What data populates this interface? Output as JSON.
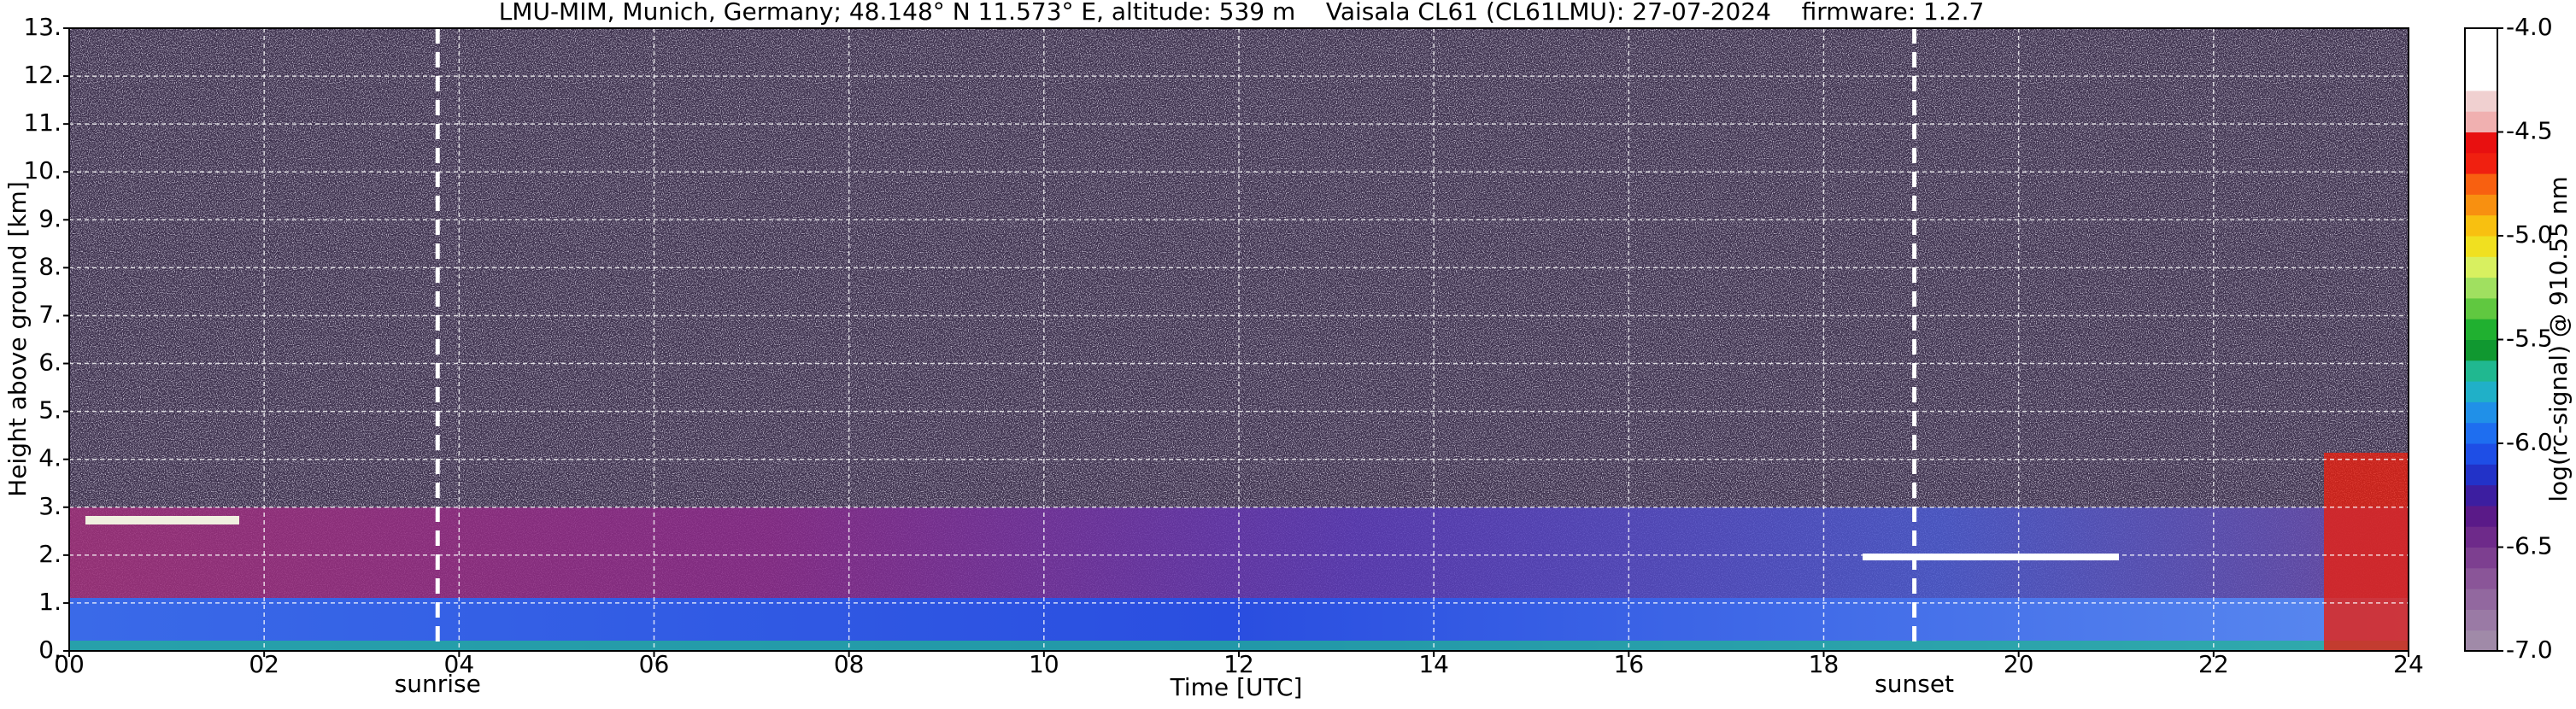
{
  "chart_data": {
    "type": "heatmap",
    "title": "LMU-MIM, Munich, Germany; 48.148° N 11.573° E, altitude: 539 m    Vaisala CL61 (CL61LMU): 27-07-2024    firmware: 1.2.7",
    "x_label": "Time [UTC]",
    "y_label": "Height above ground [km]",
    "xlim": [
      0,
      24
    ],
    "xticks": [
      {
        "value": 0,
        "label": "00"
      },
      {
        "value": 2,
        "label": "02"
      },
      {
        "value": 4,
        "label": "04"
      },
      {
        "value": 6,
        "label": "06"
      },
      {
        "value": 8,
        "label": "08"
      },
      10,
      12,
      14,
      16,
      18,
      20,
      22,
      24
    ],
    "ylim": [
      0,
      13
    ],
    "yticks": [
      {
        "value": 0,
        "label": "0."
      },
      {
        "value": 1,
        "label": "1."
      },
      {
        "value": 2,
        "label": "2."
      },
      {
        "value": 3,
        "label": "3."
      },
      {
        "value": 4,
        "label": "4."
      },
      {
        "value": 5,
        "label": "5."
      },
      {
        "value": 6,
        "label": "6."
      },
      {
        "value": 7,
        "label": "7."
      },
      {
        "value": 8,
        "label": "8."
      },
      {
        "value": 9,
        "label": "9."
      },
      {
        "value": 10,
        "label": "10."
      },
      {
        "value": 11,
        "label": "11."
      },
      {
        "value": 12,
        "label": "12."
      },
      {
        "value": 13,
        "label": "13."
      }
    ],
    "grid": true,
    "events": [
      {
        "label": "sunrise",
        "x": 3.78
      },
      {
        "label": "sunset",
        "x": 18.93
      }
    ],
    "colorbar": {
      "label": "log(rc-signal) @ 910.55 nm",
      "lim": [
        -7,
        -4
      ],
      "ticks": [
        {
          "value": -7,
          "label": "-7.0"
        },
        {
          "value": -6.5,
          "label": "-6.5"
        },
        {
          "value": -6,
          "label": "-6.0"
        },
        {
          "value": -5.5,
          "label": "-5.5"
        },
        {
          "value": -5,
          "label": "-5.0"
        },
        {
          "value": -4.5,
          "label": "-4.5"
        },
        {
          "value": -4,
          "label": "-4.0"
        }
      ],
      "colors": [
        "#a08aa8",
        "#9a7aa5",
        "#92689f",
        "#8a5598",
        "#7d3f90",
        "#6e2a8a",
        "#5a1a88",
        "#3c1ea0",
        "#2232c8",
        "#1e4ee6",
        "#1e6ef0",
        "#2090e8",
        "#20b0c8",
        "#20b890",
        "#109830",
        "#20b030",
        "#60c840",
        "#a0e060",
        "#d8f060",
        "#f0e020",
        "#f8c010",
        "#f89010",
        "#f86010",
        "#f02010",
        "#e81010",
        "#f0b0b0",
        "#f0d0d0",
        "#ffffff",
        "#ffffff",
        "#ffffff"
      ]
    }
  }
}
